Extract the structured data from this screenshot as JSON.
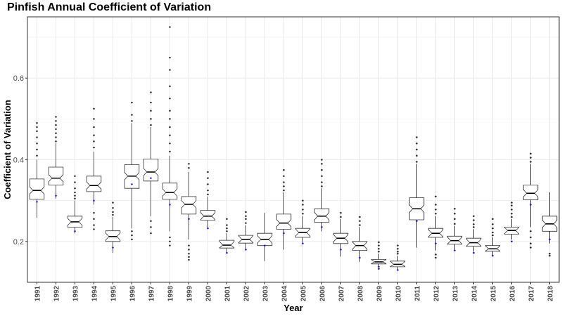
{
  "chart_data": {
    "type": "boxplot",
    "title": "Pinfish Annual Coefficient of Variation",
    "xlabel": "Year",
    "ylabel": "Coefficient of Variation",
    "ylim": [
      0.1,
      0.75
    ],
    "yticks": [
      0.2,
      0.4,
      0.6
    ],
    "ytick_labels": [
      "0.2",
      "0.4",
      "0.6"
    ],
    "grid": true,
    "colors": {
      "box_fill": "#ffffff",
      "box_stroke": "#333333",
      "grid": "#ebebeb",
      "panel_border": "#333333",
      "mean_point": "#0000cc"
    },
    "categories": [
      "1991",
      "1992",
      "1993",
      "1994",
      "1995",
      "1996",
      "1997",
      "1998",
      "1999",
      "2000",
      "2001",
      "2002",
      "2003",
      "2004",
      "2005",
      "2006",
      "2007",
      "2008",
      "2009",
      "2010",
      "2011",
      "2012",
      "2013",
      "2014",
      "2015",
      "2016",
      "2017",
      "2018"
    ],
    "boxes": [
      {
        "year": "1991",
        "lw": 0.258,
        "q1": 0.303,
        "med": 0.325,
        "q3": 0.353,
        "uw": 0.4,
        "outliers": [
          0.41,
          0.425,
          0.44,
          0.455,
          0.47,
          0.48,
          0.49
        ],
        "mean": 0.297
      },
      {
        "year": "1992",
        "lw": 0.305,
        "q1": 0.338,
        "med": 0.355,
        "q3": 0.382,
        "uw": 0.44,
        "outliers": [
          0.445,
          0.455,
          0.465,
          0.475,
          0.485,
          0.495,
          0.505
        ],
        "mean": 0.312
      },
      {
        "year": "1993",
        "lw": 0.22,
        "q1": 0.235,
        "med": 0.248,
        "q3": 0.262,
        "uw": 0.3,
        "outliers": [
          0.305,
          0.312,
          0.32,
          0.33,
          0.345,
          0.36
        ],
        "mean": 0.225
      },
      {
        "year": "1994",
        "lw": 0.29,
        "q1": 0.322,
        "med": 0.337,
        "q3": 0.36,
        "uw": 0.42,
        "outliers": [
          0.23,
          0.24,
          0.255,
          0.27,
          0.43,
          0.445,
          0.46,
          0.48,
          0.5,
          0.525
        ],
        "mean": 0.3
      },
      {
        "year": "1995",
        "lw": 0.172,
        "q1": 0.2,
        "med": 0.212,
        "q3": 0.226,
        "uw": 0.26,
        "outliers": [
          0.265,
          0.272,
          0.282,
          0.295
        ],
        "mean": 0.185
      },
      {
        "year": "1996",
        "lw": 0.232,
        "q1": 0.33,
        "med": 0.36,
        "q3": 0.388,
        "uw": 0.49,
        "outliers": [
          0.205,
          0.215,
          0.225,
          0.495,
          0.51,
          0.54
        ],
        "mean": 0.34
      },
      {
        "year": "1997",
        "lw": 0.262,
        "q1": 0.348,
        "med": 0.37,
        "q3": 0.402,
        "uw": 0.48,
        "outliers": [
          0.22,
          0.235,
          0.25,
          0.485,
          0.5,
          0.52,
          0.54,
          0.565
        ],
        "mean": 0.355
      },
      {
        "year": "1998",
        "lw": 0.225,
        "q1": 0.303,
        "med": 0.32,
        "q3": 0.343,
        "uw": 0.41,
        "outliers": [
          0.19,
          0.2,
          0.21,
          0.42,
          0.44,
          0.46,
          0.48,
          0.5,
          0.52,
          0.55,
          0.58,
          0.62,
          0.65,
          0.725
        ],
        "mean": 0.29
      },
      {
        "year": "1999",
        "lw": 0.205,
        "q1": 0.267,
        "med": 0.291,
        "q3": 0.31,
        "uw": 0.37,
        "outliers": [
          0.155,
          0.162,
          0.17,
          0.18,
          0.19,
          0.38,
          0.39
        ],
        "mean": 0.255
      },
      {
        "year": "2000",
        "lw": 0.232,
        "q1": 0.252,
        "med": 0.262,
        "q3": 0.276,
        "uw": 0.31,
        "outliers": [
          0.315,
          0.325,
          0.34,
          0.355,
          0.37
        ],
        "mean": 0.232
      },
      {
        "year": "2001",
        "lw": 0.172,
        "q1": 0.184,
        "med": 0.191,
        "q3": 0.203,
        "uw": 0.22,
        "outliers": [
          0.225,
          0.232,
          0.24,
          0.255
        ],
        "mean": 0.172
      },
      {
        "year": "2002",
        "lw": 0.178,
        "q1": 0.196,
        "med": 0.205,
        "q3": 0.215,
        "uw": 0.24,
        "outliers": [
          0.245,
          0.255,
          0.262,
          0.272
        ],
        "mean": 0.18
      },
      {
        "year": "2003",
        "lw": 0.152,
        "q1": 0.19,
        "med": 0.205,
        "q3": 0.22,
        "uw": 0.27,
        "outliers": [],
        "mean": 0.19
      },
      {
        "year": "2004",
        "lw": 0.18,
        "q1": 0.23,
        "med": 0.245,
        "q3": 0.267,
        "uw": 0.32,
        "outliers": [
          0.325,
          0.335,
          0.345,
          0.36,
          0.375
        ],
        "mean": 0.22
      },
      {
        "year": "2005",
        "lw": 0.196,
        "q1": 0.21,
        "med": 0.222,
        "q3": 0.232,
        "uw": 0.262,
        "outliers": [
          0.268,
          0.278,
          0.29,
          0.3
        ],
        "mean": 0.195
      },
      {
        "year": "2006",
        "lw": 0.225,
        "q1": 0.247,
        "med": 0.262,
        "q3": 0.28,
        "uw": 0.33,
        "outliers": [
          0.335,
          0.345,
          0.36,
          0.375,
          0.39,
          0.4
        ],
        "mean": 0.235
      },
      {
        "year": "2007",
        "lw": 0.163,
        "q1": 0.195,
        "med": 0.208,
        "q3": 0.22,
        "uw": 0.255,
        "outliers": [
          0.26,
          0.27
        ],
        "mean": 0.18
      },
      {
        "year": "2008",
        "lw": 0.15,
        "q1": 0.178,
        "med": 0.19,
        "q3": 0.2,
        "uw": 0.235,
        "outliers": [
          0.24,
          0.25,
          0.26
        ],
        "mean": 0.16
      },
      {
        "year": "2009",
        "lw": 0.137,
        "q1": 0.145,
        "med": 0.15,
        "q3": 0.156,
        "uw": 0.17,
        "outliers": [
          0.175,
          0.182,
          0.19,
          0.198,
          0.133
        ],
        "mean": 0.138
      },
      {
        "year": "2010",
        "lw": 0.128,
        "q1": 0.138,
        "med": 0.144,
        "q3": 0.152,
        "uw": 0.165,
        "outliers": [
          0.17,
          0.175,
          0.182,
          0.19
        ],
        "mean": 0.13
      },
      {
        "year": "2011",
        "lw": 0.185,
        "q1": 0.253,
        "med": 0.28,
        "q3": 0.307,
        "uw": 0.39,
        "outliers": [
          0.395,
          0.41,
          0.425,
          0.44,
          0.455
        ],
        "mean": 0.25
      },
      {
        "year": "2012",
        "lw": 0.178,
        "q1": 0.21,
        "med": 0.22,
        "q3": 0.232,
        "uw": 0.262,
        "outliers": [
          0.16,
          0.168,
          0.268,
          0.278,
          0.29,
          0.31
        ],
        "mean": 0.195
      },
      {
        "year": "2013",
        "lw": 0.18,
        "q1": 0.193,
        "med": 0.202,
        "q3": 0.213,
        "uw": 0.238,
        "outliers": [
          0.243,
          0.255,
          0.268,
          0.28
        ],
        "mean": 0.178
      },
      {
        "year": "2014",
        "lw": 0.175,
        "q1": 0.188,
        "med": 0.197,
        "q3": 0.208,
        "uw": 0.23,
        "outliers": [
          0.235,
          0.242,
          0.252,
          0.262
        ],
        "mean": 0.172
      },
      {
        "year": "2015",
        "lw": 0.165,
        "q1": 0.176,
        "med": 0.182,
        "q3": 0.19,
        "uw": 0.21,
        "outliers": [
          0.215,
          0.222,
          0.232,
          0.242,
          0.255
        ],
        "mean": 0.165
      },
      {
        "year": "2016",
        "lw": 0.205,
        "q1": 0.218,
        "med": 0.227,
        "q3": 0.235,
        "uw": 0.255,
        "outliers": [
          0.26,
          0.268,
          0.278,
          0.288,
          0.295
        ],
        "mean": 0.2
      },
      {
        "year": "2017",
        "lw": 0.235,
        "q1": 0.302,
        "med": 0.318,
        "q3": 0.338,
        "uw": 0.39,
        "outliers": [
          0.185,
          0.195,
          0.21,
          0.225,
          0.395,
          0.405,
          0.415
        ],
        "mean": 0.29
      },
      {
        "year": "2018",
        "lw": 0.195,
        "q1": 0.225,
        "med": 0.243,
        "q3": 0.262,
        "uw": 0.32,
        "outliers": [
          0.165,
          0.17
        ],
        "mean": 0.205
      }
    ]
  }
}
